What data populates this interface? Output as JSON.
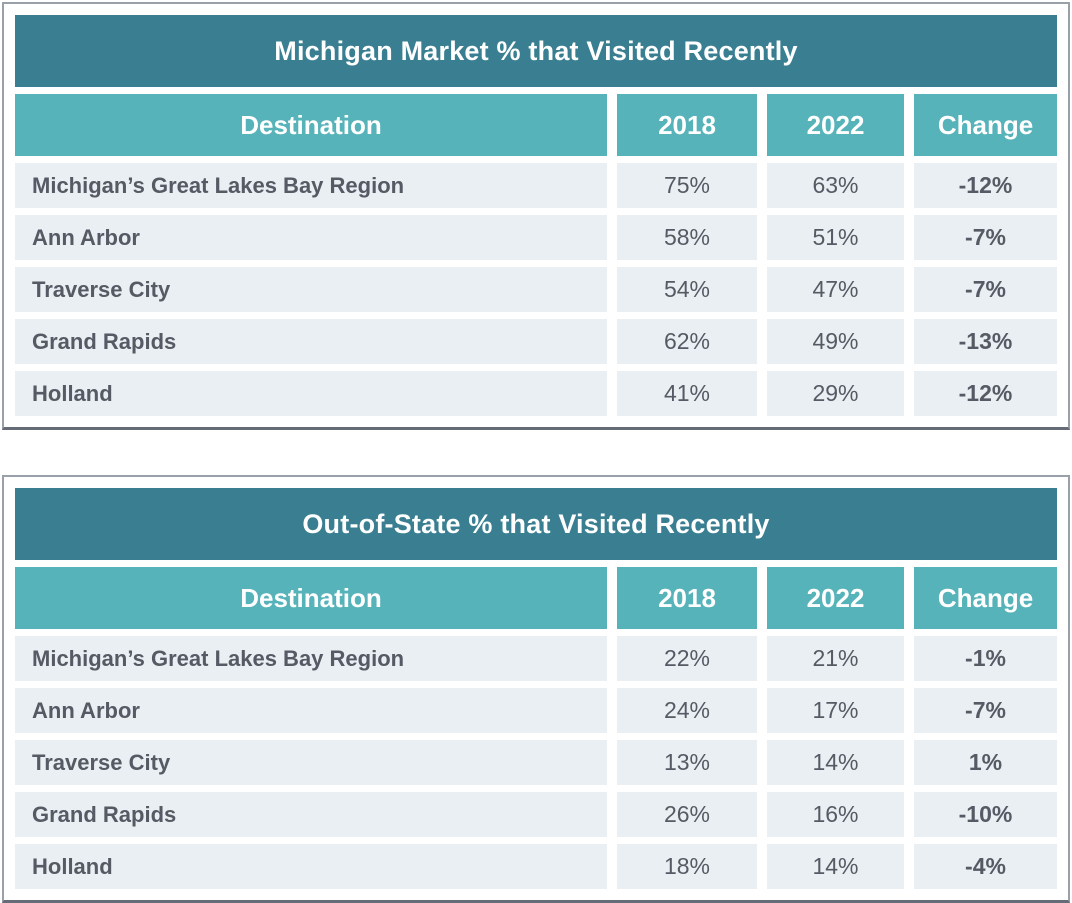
{
  "colors": {
    "title_bar_bg": "#397f91",
    "header_row_bg": "#57b3ba",
    "data_row_bg": "#e9eff2",
    "text_dark": "#555a64",
    "text_light": "#ffffff",
    "card_border": "#9aa0a9"
  },
  "chart_data": [
    {
      "type": "table",
      "title": "Michigan Market % that Visited Recently",
      "columns": [
        "Destination",
        "2018",
        "2022",
        "Change"
      ],
      "rows": [
        [
          "Michigan’s Great Lakes Bay Region",
          "75%",
          "63%",
          "-12%"
        ],
        [
          "Ann Arbor",
          "58%",
          "51%",
          "-7%"
        ],
        [
          "Traverse City",
          "54%",
          "47%",
          "-7%"
        ],
        [
          "Grand Rapids",
          "62%",
          "49%",
          "-13%"
        ],
        [
          "Holland",
          "41%",
          "29%",
          "-12%"
        ]
      ]
    },
    {
      "type": "table",
      "title": "Out-of-State % that Visited Recently",
      "columns": [
        "Destination",
        "2018",
        "2022",
        "Change"
      ],
      "rows": [
        [
          "Michigan’s Great Lakes Bay Region",
          "22%",
          "21%",
          "-1%"
        ],
        [
          "Ann Arbor",
          "24%",
          "17%",
          "-7%"
        ],
        [
          "Traverse City",
          "13%",
          "14%",
          "1%"
        ],
        [
          "Grand Rapids",
          "26%",
          "16%",
          "-10%"
        ],
        [
          "Holland",
          "18%",
          "14%",
          "-4%"
        ]
      ]
    }
  ]
}
